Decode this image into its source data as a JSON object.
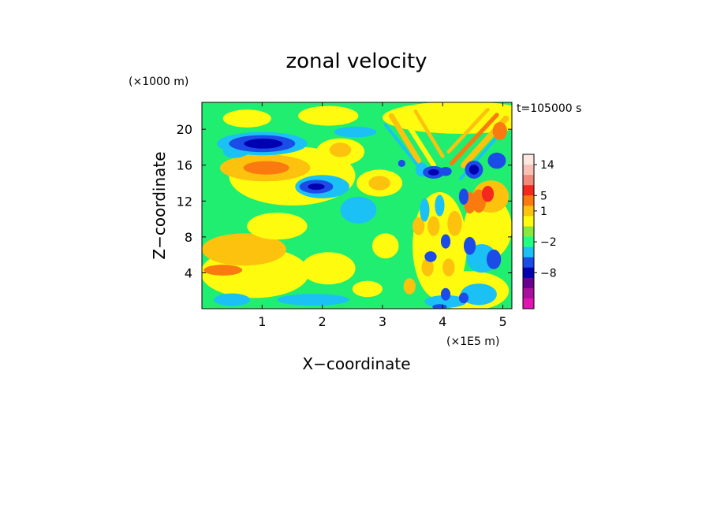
{
  "chart_data": {
    "type": "heatmap",
    "title": "zonal velocity",
    "xlabel": "X−coordinate",
    "ylabel": "Z−coordinate",
    "x_unit": "(×1E5 m)",
    "y_unit": "(×1000 m)",
    "annotation": "t=105000 s",
    "xlim": [
      0,
      5.15
    ],
    "ylim": [
      0,
      23
    ],
    "x_ticks": [
      1,
      2,
      3,
      4,
      5
    ],
    "x_tick_labels": [
      "1",
      "2",
      "3",
      "4",
      "5"
    ],
    "y_ticks": [
      4,
      8,
      12,
      16,
      20
    ],
    "y_tick_labels": [
      "4",
      "8",
      "12",
      "16",
      "20"
    ],
    "colorbar": {
      "levels_top_to_bottom": [
        {
          "color": "#fde8e0"
        },
        {
          "color": "#f9c0b6"
        },
        {
          "color": "#f18a7c"
        },
        {
          "color": "#f5281e"
        },
        {
          "color": "#fb7a10"
        },
        {
          "color": "#fcc20e"
        },
        {
          "color": "#fffb0e"
        },
        {
          "color": "#8ae83c"
        },
        {
          "color": "#20ff80"
        },
        {
          "color": "#1bc1f4"
        },
        {
          "color": "#1b4ce8"
        },
        {
          "color": "#0000b0"
        },
        {
          "color": "#6a0090"
        },
        {
          "color": "#a8109e"
        },
        {
          "color": "#e214b4"
        }
      ],
      "tick_labels": [
        {
          "label": "14",
          "level": 1
        },
        {
          "label": "5",
          "level": 4
        },
        {
          "label": "1",
          "level": 5.5
        },
        {
          "label": "−2",
          "level": 8.5
        },
        {
          "label": "−8",
          "level": 11.5
        }
      ]
    },
    "field": {
      "background_color": "#20ee70",
      "features": [
        {
          "kind": "blob",
          "x": 0.88,
          "z": 4.0,
          "rx": 0.9,
          "rz": 2.8,
          "color": "#fffb0e"
        },
        {
          "kind": "blob",
          "x": 0.7,
          "z": 6.6,
          "rx": 0.7,
          "rz": 1.8,
          "color": "#fcc20e"
        },
        {
          "kind": "blob",
          "x": 0.35,
          "z": 4.3,
          "rx": 0.32,
          "rz": 0.6,
          "color": "#fb7a10"
        },
        {
          "kind": "blob",
          "x": 1.25,
          "z": 9.2,
          "rx": 0.5,
          "rz": 1.5,
          "color": "#fffb0e"
        },
        {
          "kind": "blob",
          "x": 2.1,
          "z": 4.5,
          "rx": 0.45,
          "rz": 1.8,
          "color": "#fffb0e"
        },
        {
          "kind": "blob",
          "x": 0.5,
          "z": 1.0,
          "rx": 0.3,
          "rz": 0.7,
          "color": "#1bc1f4"
        },
        {
          "kind": "blob",
          "x": 1.85,
          "z": 1.0,
          "rx": 0.6,
          "rz": 0.65,
          "color": "#1bc1f4"
        },
        {
          "kind": "blob",
          "x": 2.75,
          "z": 2.2,
          "rx": 0.25,
          "rz": 0.9,
          "color": "#fffb0e"
        },
        {
          "kind": "blob",
          "x": 2.6,
          "z": 11.0,
          "rx": 0.3,
          "rz": 1.5,
          "color": "#1bc1f4"
        },
        {
          "kind": "blob",
          "x": 3.05,
          "z": 7.0,
          "rx": 0.22,
          "rz": 1.4,
          "color": "#fffb0e"
        },
        {
          "kind": "blob",
          "x": 1.5,
          "z": 14.8,
          "rx": 1.05,
          "rz": 3.3,
          "color": "#fffb0e"
        },
        {
          "kind": "blob",
          "x": 1.05,
          "z": 15.7,
          "rx": 0.75,
          "rz": 1.5,
          "color": "#fcc20e"
        },
        {
          "kind": "blob",
          "x": 1.07,
          "z": 15.7,
          "rx": 0.38,
          "rz": 0.75,
          "color": "#fb7a10"
        },
        {
          "kind": "blob",
          "x": 0.55,
          "z": 17.5,
          "rx": 0.2,
          "rz": 0.7,
          "color": "#1bc1f4"
        },
        {
          "kind": "blob",
          "x": 1.0,
          "z": 18.4,
          "rx": 0.75,
          "rz": 1.3,
          "color": "#1bc1f4"
        },
        {
          "kind": "blob",
          "x": 1.0,
          "z": 18.4,
          "rx": 0.55,
          "rz": 0.95,
          "color": "#1b4ce8"
        },
        {
          "kind": "blob",
          "x": 1.02,
          "z": 18.4,
          "rx": 0.32,
          "rz": 0.55,
          "color": "#0000b0"
        },
        {
          "kind": "blob",
          "x": 2.0,
          "z": 13.6,
          "rx": 0.45,
          "rz": 1.3,
          "color": "#1bc1f4"
        },
        {
          "kind": "blob",
          "x": 1.9,
          "z": 13.6,
          "rx": 0.28,
          "rz": 0.75,
          "color": "#1b4ce8"
        },
        {
          "kind": "blob",
          "x": 1.9,
          "z": 13.6,
          "rx": 0.14,
          "rz": 0.35,
          "color": "#0000b0"
        },
        {
          "kind": "blob",
          "x": 2.3,
          "z": 17.5,
          "rx": 0.4,
          "rz": 1.5,
          "color": "#fffb0e"
        },
        {
          "kind": "blob",
          "x": 2.3,
          "z": 17.7,
          "rx": 0.18,
          "rz": 0.8,
          "color": "#fcc20e"
        },
        {
          "kind": "blob",
          "x": 2.95,
          "z": 14.0,
          "rx": 0.38,
          "rz": 1.5,
          "color": "#fffb0e"
        },
        {
          "kind": "blob",
          "x": 2.95,
          "z": 14.0,
          "rx": 0.18,
          "rz": 0.8,
          "color": "#fcc20e"
        },
        {
          "kind": "blob",
          "x": 0.75,
          "z": 21.2,
          "rx": 0.4,
          "rz": 1.0,
          "color": "#fffb0e"
        },
        {
          "kind": "blob",
          "x": 2.1,
          "z": 21.5,
          "rx": 0.5,
          "rz": 1.1,
          "color": "#fffb0e"
        },
        {
          "kind": "blob",
          "x": 2.55,
          "z": 19.7,
          "rx": 0.35,
          "rz": 0.6,
          "color": "#1bc1f4"
        },
        {
          "kind": "blob",
          "x": 4.3,
          "z": 21.3,
          "rx": 1.3,
          "rz": 1.8,
          "color": "#fffb0e"
        },
        {
          "kind": "streak",
          "x0": 3.15,
          "z0": 21.5,
          "x1": 3.6,
          "z1": 16.5,
          "w": 0.09,
          "color": "#fcc20e"
        },
        {
          "kind": "streak",
          "x0": 3.3,
          "z0": 21.8,
          "x1": 3.85,
          "z1": 16.0,
          "w": 0.08,
          "color": "#fffb0e"
        },
        {
          "kind": "streak",
          "x0": 3.55,
          "z0": 22.0,
          "x1": 4.0,
          "z1": 17.0,
          "w": 0.06,
          "color": "#fcc20e"
        },
        {
          "kind": "streak",
          "x0": 5.05,
          "z0": 21.2,
          "x1": 4.35,
          "z1": 16.0,
          "w": 0.1,
          "color": "#fcc20e"
        },
        {
          "kind": "streak",
          "x0": 4.9,
          "z0": 21.6,
          "x1": 4.15,
          "z1": 16.2,
          "w": 0.07,
          "color": "#fb7a10"
        },
        {
          "kind": "streak",
          "x0": 4.75,
          "z0": 22.2,
          "x1": 4.1,
          "z1": 17.5,
          "w": 0.06,
          "color": "#fcc20e"
        },
        {
          "kind": "streak",
          "x0": 3.05,
          "z0": 20.5,
          "x1": 3.7,
          "z1": 15.0,
          "w": 0.05,
          "color": "#1bc1f4"
        },
        {
          "kind": "streak",
          "x0": 4.95,
          "z0": 19.5,
          "x1": 4.3,
          "z1": 14.5,
          "w": 0.05,
          "color": "#1bc1f4"
        },
        {
          "kind": "blob",
          "x": 3.95,
          "z": 7.0,
          "rx": 0.45,
          "rz": 6.0,
          "color": "#fffb0e"
        },
        {
          "kind": "blob",
          "x": 4.75,
          "z": 9.0,
          "rx": 0.4,
          "rz": 3.5,
          "color": "#fffb0e"
        },
        {
          "kind": "blob",
          "x": 4.45,
          "z": 2.0,
          "rx": 0.65,
          "rz": 2.2,
          "color": "#fffb0e"
        },
        {
          "kind": "blob",
          "x": 4.8,
          "z": 12.5,
          "rx": 0.3,
          "rz": 1.8,
          "color": "#fcc20e"
        },
        {
          "kind": "blob",
          "x": 4.6,
          "z": 12.0,
          "rx": 0.12,
          "rz": 1.3,
          "color": "#fb7a10"
        },
        {
          "kind": "blob",
          "x": 4.75,
          "z": 12.8,
          "rx": 0.1,
          "rz": 0.9,
          "color": "#f5281e"
        },
        {
          "kind": "blob",
          "x": 4.45,
          "z": 11.8,
          "rx": 0.1,
          "rz": 1.2,
          "color": "#fb7a10"
        },
        {
          "kind": "blob",
          "x": 4.2,
          "z": 9.5,
          "rx": 0.12,
          "rz": 1.4,
          "color": "#fcc20e"
        },
        {
          "kind": "blob",
          "x": 3.85,
          "z": 9.2,
          "rx": 0.1,
          "rz": 1.1,
          "color": "#fcc20e"
        },
        {
          "kind": "blob",
          "x": 3.6,
          "z": 9.2,
          "rx": 0.1,
          "rz": 1.0,
          "color": "#fcc20e"
        },
        {
          "kind": "blob",
          "x": 3.75,
          "z": 4.6,
          "rx": 0.1,
          "rz": 1.0,
          "color": "#fcc20e"
        },
        {
          "kind": "blob",
          "x": 4.1,
          "z": 4.6,
          "rx": 0.1,
          "rz": 1.0,
          "color": "#fcc20e"
        },
        {
          "kind": "blob",
          "x": 3.45,
          "z": 2.5,
          "rx": 0.1,
          "rz": 0.9,
          "color": "#fcc20e"
        },
        {
          "kind": "blob",
          "x": 4.95,
          "z": 19.8,
          "rx": 0.12,
          "rz": 1.0,
          "color": "#fb7a10"
        },
        {
          "kind": "blob",
          "x": 4.65,
          "z": 5.6,
          "rx": 0.25,
          "rz": 1.6,
          "color": "#1bc1f4"
        },
        {
          "kind": "blob",
          "x": 4.6,
          "z": 1.6,
          "rx": 0.3,
          "rz": 1.2,
          "color": "#1bc1f4"
        },
        {
          "kind": "blob",
          "x": 4.05,
          "z": 0.8,
          "rx": 0.35,
          "rz": 0.7,
          "color": "#1bc1f4"
        },
        {
          "kind": "blob",
          "x": 3.7,
          "z": 11.0,
          "rx": 0.08,
          "rz": 1.3,
          "color": "#1bc1f4"
        },
        {
          "kind": "blob",
          "x": 3.95,
          "z": 11.5,
          "rx": 0.08,
          "rz": 1.2,
          "color": "#1bc1f4"
        },
        {
          "kind": "blob",
          "x": 3.65,
          "z": 15.5,
          "rx": 0.1,
          "rz": 0.8,
          "color": "#1bc1f4"
        },
        {
          "kind": "blob",
          "x": 3.85,
          "z": 15.2,
          "rx": 0.18,
          "rz": 0.7,
          "color": "#1b4ce8"
        },
        {
          "kind": "blob",
          "x": 4.05,
          "z": 15.3,
          "rx": 0.1,
          "rz": 0.5,
          "color": "#1b4ce8"
        },
        {
          "kind": "blob",
          "x": 3.85,
          "z": 15.2,
          "rx": 0.09,
          "rz": 0.35,
          "color": "#0000b0"
        },
        {
          "kind": "blob",
          "x": 3.32,
          "z": 16.2,
          "rx": 0.06,
          "rz": 0.4,
          "color": "#1b4ce8"
        },
        {
          "kind": "blob",
          "x": 4.52,
          "z": 15.5,
          "rx": 0.15,
          "rz": 1.0,
          "color": "#1b4ce8"
        },
        {
          "kind": "blob",
          "x": 4.52,
          "z": 15.5,
          "rx": 0.08,
          "rz": 0.55,
          "color": "#0000b0"
        },
        {
          "kind": "blob",
          "x": 4.9,
          "z": 16.5,
          "rx": 0.15,
          "rz": 0.9,
          "color": "#1b4ce8"
        },
        {
          "kind": "blob",
          "x": 4.35,
          "z": 12.5,
          "rx": 0.08,
          "rz": 0.9,
          "color": "#1b4ce8"
        },
        {
          "kind": "blob",
          "x": 4.45,
          "z": 7.0,
          "rx": 0.1,
          "rz": 1.0,
          "color": "#1b4ce8"
        },
        {
          "kind": "blob",
          "x": 4.05,
          "z": 7.5,
          "rx": 0.08,
          "rz": 0.8,
          "color": "#1b4ce8"
        },
        {
          "kind": "blob",
          "x": 3.8,
          "z": 5.8,
          "rx": 0.1,
          "rz": 0.6,
          "color": "#1b4ce8"
        },
        {
          "kind": "blob",
          "x": 4.85,
          "z": 5.5,
          "rx": 0.12,
          "rz": 1.1,
          "color": "#1b4ce8"
        },
        {
          "kind": "blob",
          "x": 4.05,
          "z": 1.6,
          "rx": 0.08,
          "rz": 0.7,
          "color": "#1b4ce8"
        },
        {
          "kind": "blob",
          "x": 4.35,
          "z": 1.2,
          "rx": 0.08,
          "rz": 0.6,
          "color": "#1b4ce8"
        },
        {
          "kind": "blob",
          "x": 3.95,
          "z": 0.2,
          "rx": 0.12,
          "rz": 0.3,
          "color": "#1b4ce8"
        }
      ]
    }
  }
}
